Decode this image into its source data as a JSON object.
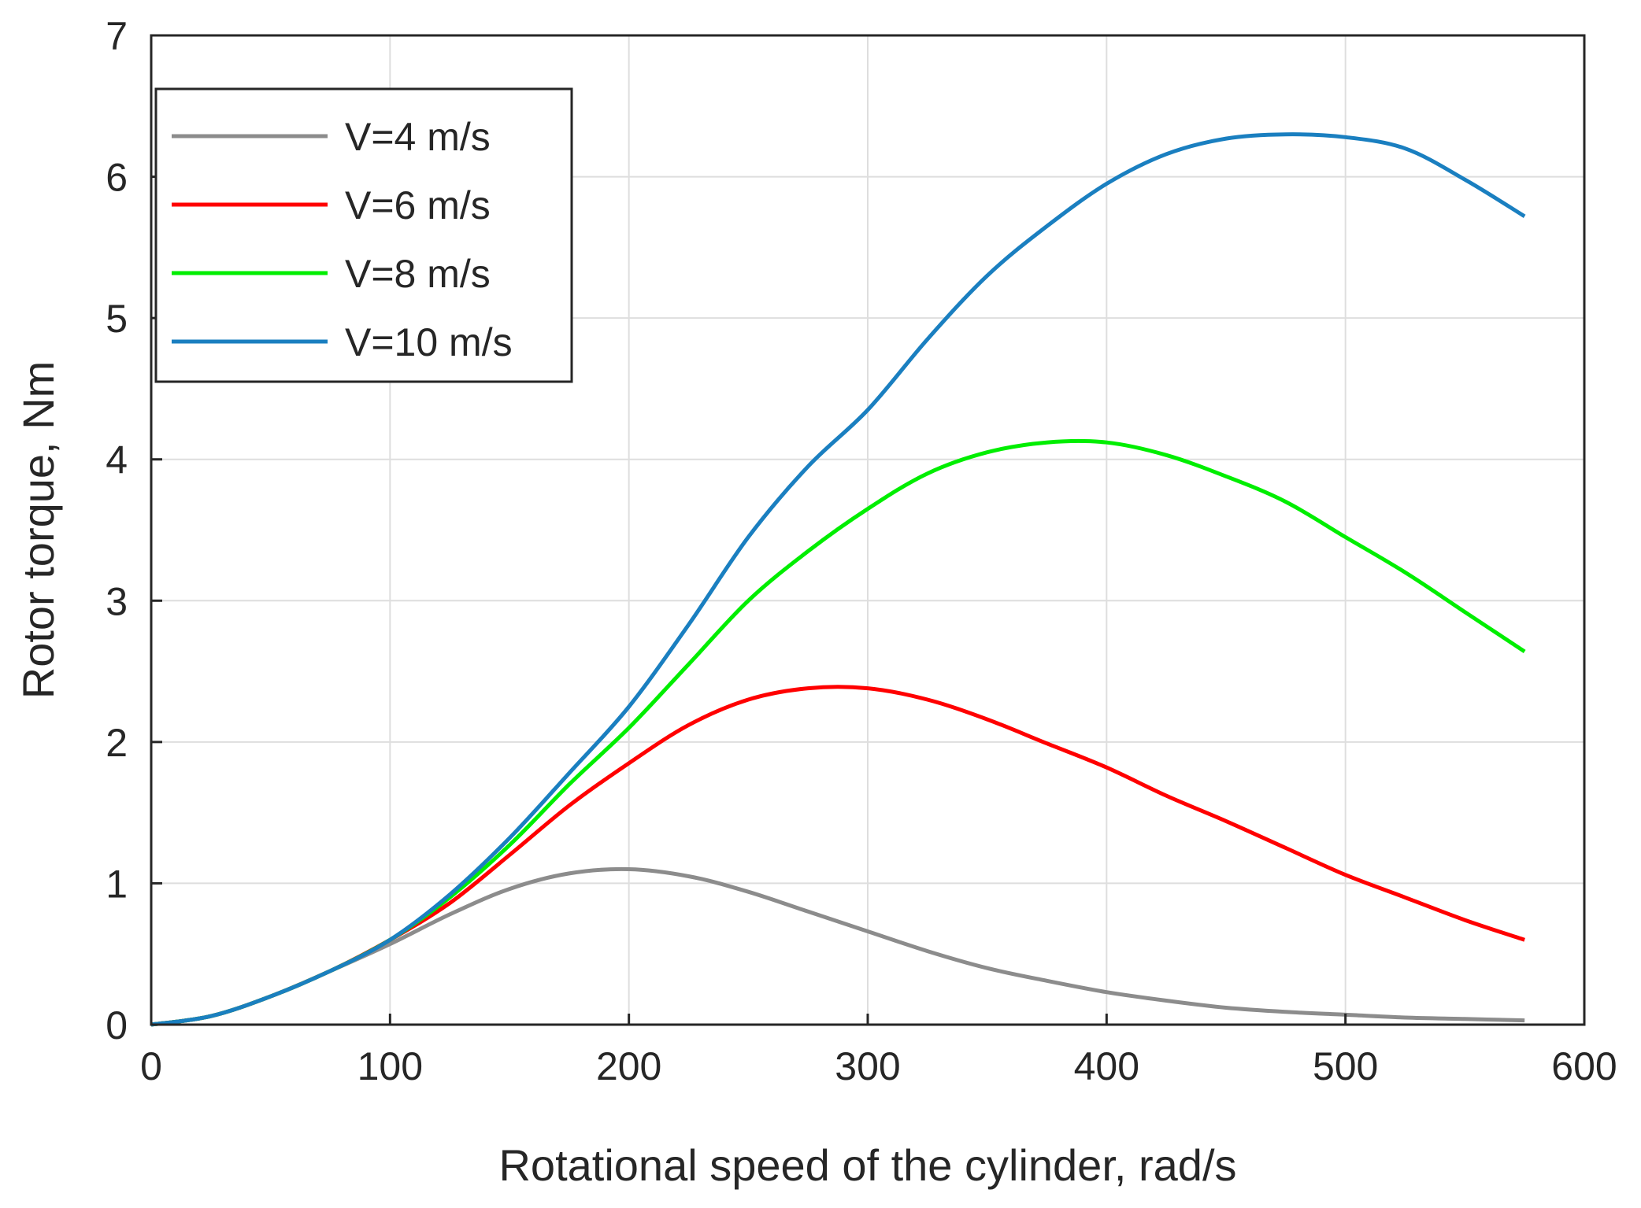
{
  "chart_data": {
    "type": "line",
    "title": "",
    "xlabel": "Rotational speed of the cylinder, rad/s",
    "ylabel": "Rotor torque, Nm",
    "xlim": [
      0,
      600
    ],
    "ylim": [
      0,
      7
    ],
    "xticks": [
      "0",
      "100",
      "200",
      "300",
      "400",
      "500",
      "600"
    ],
    "yticks": [
      "0",
      "1",
      "2",
      "3",
      "4",
      "5",
      "6",
      "7"
    ],
    "grid": true,
    "legend_position": "top-left",
    "x": [
      0,
      25,
      50,
      75,
      100,
      125,
      150,
      175,
      200,
      225,
      250,
      275,
      300,
      325,
      350,
      375,
      400,
      425,
      450,
      475,
      500,
      525,
      550,
      575
    ],
    "series": [
      {
        "name": "V=4 m/s",
        "color": "#8c8c8c",
        "values": [
          0,
          0.06,
          0.2,
          0.38,
          0.57,
          0.78,
          0.96,
          1.07,
          1.1,
          1.05,
          0.94,
          0.8,
          0.66,
          0.52,
          0.4,
          0.31,
          0.23,
          0.17,
          0.12,
          0.09,
          0.07,
          0.05,
          0.04,
          0.03
        ]
      },
      {
        "name": "V=6 m/s",
        "color": "#ff0000",
        "values": [
          0,
          0.06,
          0.2,
          0.38,
          0.6,
          0.86,
          1.2,
          1.55,
          1.85,
          2.12,
          2.3,
          2.38,
          2.38,
          2.3,
          2.16,
          1.99,
          1.82,
          1.62,
          1.44,
          1.25,
          1.06,
          0.9,
          0.74,
          0.6
        ]
      },
      {
        "name": "V=8 m/s",
        "color": "#00ee00",
        "values": [
          0,
          0.06,
          0.2,
          0.38,
          0.6,
          0.9,
          1.27,
          1.7,
          2.1,
          2.55,
          3.0,
          3.35,
          3.65,
          3.9,
          4.05,
          4.12,
          4.12,
          4.03,
          3.88,
          3.7,
          3.45,
          3.2,
          2.92,
          2.64
        ]
      },
      {
        "name": "V=10 m/s",
        "color": "#1a7fc0",
        "values": [
          0,
          0.06,
          0.2,
          0.38,
          0.6,
          0.92,
          1.32,
          1.78,
          2.25,
          2.83,
          3.45,
          3.95,
          4.35,
          4.85,
          5.3,
          5.65,
          5.95,
          6.16,
          6.27,
          6.3,
          6.28,
          6.2,
          5.98,
          5.72
        ]
      }
    ]
  }
}
